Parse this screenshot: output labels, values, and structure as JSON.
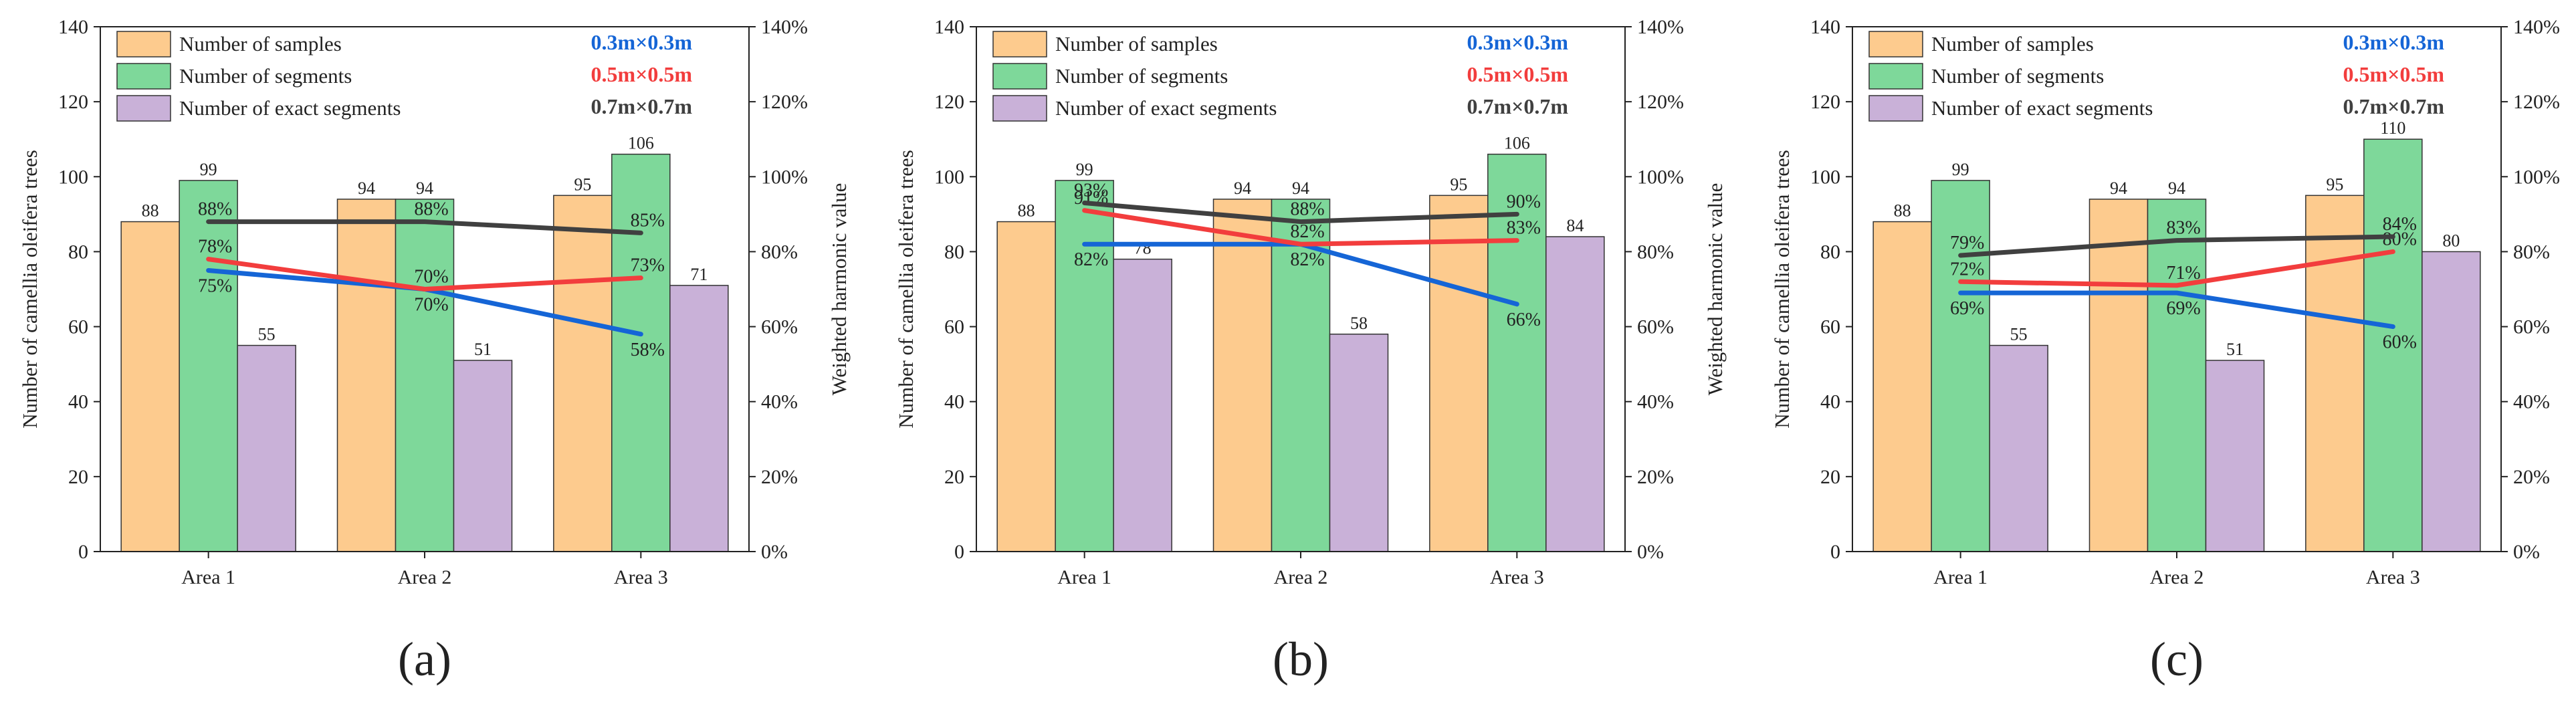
{
  "chart_data": [
    {
      "type": "bar",
      "panel_label": "(a)",
      "categories": [
        "Area 1",
        "Area 2",
        "Area 3"
      ],
      "ylabel": "Number of camellia oleifera trees",
      "y2label": "Weighted harmonic value",
      "ylim": [
        0,
        140
      ],
      "y2lim": [
        0,
        140
      ],
      "yticks": [
        "0",
        "20",
        "40",
        "60",
        "80",
        "100",
        "120",
        "140"
      ],
      "y2ticks": [
        "0%",
        "20%",
        "40%",
        "60%",
        "80%",
        "100%",
        "120%",
        "140%"
      ],
      "bar_series": [
        {
          "name": "Number of samples",
          "color": "#FDCB8E",
          "values": [
            88,
            94,
            95
          ]
        },
        {
          "name": "Number of segments",
          "color": "#7ED89A",
          "values": [
            99,
            94,
            106
          ]
        },
        {
          "name": "Number of exact segments",
          "color": "#C9B1D8",
          "values": [
            55,
            51,
            71
          ]
        }
      ],
      "line_series": [
        {
          "name": "0.3m×0.3m",
          "color": "#1565D6",
          "values": [
            75,
            70,
            58
          ],
          "labels": [
            "75%",
            "70%",
            "58%"
          ]
        },
        {
          "name": "0.5m×0.5m",
          "color": "#F23D3D",
          "values": [
            78,
            70,
            73
          ],
          "labels": [
            "78%",
            "70%",
            "73%"
          ]
        },
        {
          "name": "0.7m×0.7m",
          "color": "#404040",
          "values": [
            88,
            88,
            85
          ],
          "labels": [
            "88%",
            "88%",
            "85%"
          ]
        }
      ]
    },
    {
      "type": "bar",
      "panel_label": "(b)",
      "categories": [
        "Area 1",
        "Area 2",
        "Area 3"
      ],
      "ylabel": "Number of camellia oleifera trees",
      "y2label": "Weighted harmonic value",
      "ylim": [
        0,
        140
      ],
      "y2lim": [
        0,
        140
      ],
      "yticks": [
        "0",
        "20",
        "40",
        "60",
        "80",
        "100",
        "120",
        "140"
      ],
      "y2ticks": [
        "0%",
        "20%",
        "40%",
        "60%",
        "80%",
        "100%",
        "120%",
        "140%"
      ],
      "bar_series": [
        {
          "name": "Number of samples",
          "color": "#FDCB8E",
          "values": [
            88,
            94,
            95
          ]
        },
        {
          "name": "Number of segments",
          "color": "#7ED89A",
          "values": [
            99,
            94,
            106
          ]
        },
        {
          "name": "Number of exact segments",
          "color": "#C9B1D8",
          "values": [
            78,
            58,
            84
          ]
        }
      ],
      "line_series": [
        {
          "name": "0.3m×0.3m",
          "color": "#1565D6",
          "values": [
            82,
            82,
            66
          ],
          "labels": [
            "82%",
            "82%",
            "66%"
          ]
        },
        {
          "name": "0.5m×0.5m",
          "color": "#F23D3D",
          "values": [
            91,
            82,
            83
          ],
          "labels": [
            "91%",
            "82%",
            "83%"
          ]
        },
        {
          "name": "0.7m×0.7m",
          "color": "#404040",
          "values": [
            93,
            88,
            90
          ],
          "labels": [
            "93%",
            "88%",
            "90%"
          ]
        }
      ]
    },
    {
      "type": "bar",
      "panel_label": "(c)",
      "categories": [
        "Area 1",
        "Area 2",
        "Area 3"
      ],
      "ylabel": "Number of camellia oleifera trees",
      "y2label": "Weighted harmonic value",
      "ylim": [
        0,
        140
      ],
      "y2lim": [
        0,
        140
      ],
      "yticks": [
        "0",
        "20",
        "40",
        "60",
        "80",
        "100",
        "120",
        "140"
      ],
      "y2ticks": [
        "0%",
        "20%",
        "40%",
        "60%",
        "80%",
        "100%",
        "120%",
        "140%"
      ],
      "bar_series": [
        {
          "name": "Number of samples",
          "color": "#FDCB8E",
          "values": [
            88,
            94,
            95
          ]
        },
        {
          "name": "Number of segments",
          "color": "#7ED89A",
          "values": [
            99,
            94,
            110
          ]
        },
        {
          "name": "Number of exact segments",
          "color": "#C9B1D8",
          "values": [
            55,
            51,
            80
          ]
        }
      ],
      "line_series": [
        {
          "name": "0.3m×0.3m",
          "color": "#1565D6",
          "values": [
            69,
            69,
            60
          ],
          "labels": [
            "69%",
            "69%",
            "60%"
          ]
        },
        {
          "name": "0.5m×0.5m",
          "color": "#F23D3D",
          "values": [
            72,
            71,
            80
          ],
          "labels": [
            "72%",
            "71%",
            "80%"
          ]
        },
        {
          "name": "0.7m×0.7m",
          "color": "#404040",
          "values": [
            79,
            83,
            84
          ],
          "labels": [
            "79%",
            "83%",
            "84%"
          ]
        }
      ]
    }
  ]
}
